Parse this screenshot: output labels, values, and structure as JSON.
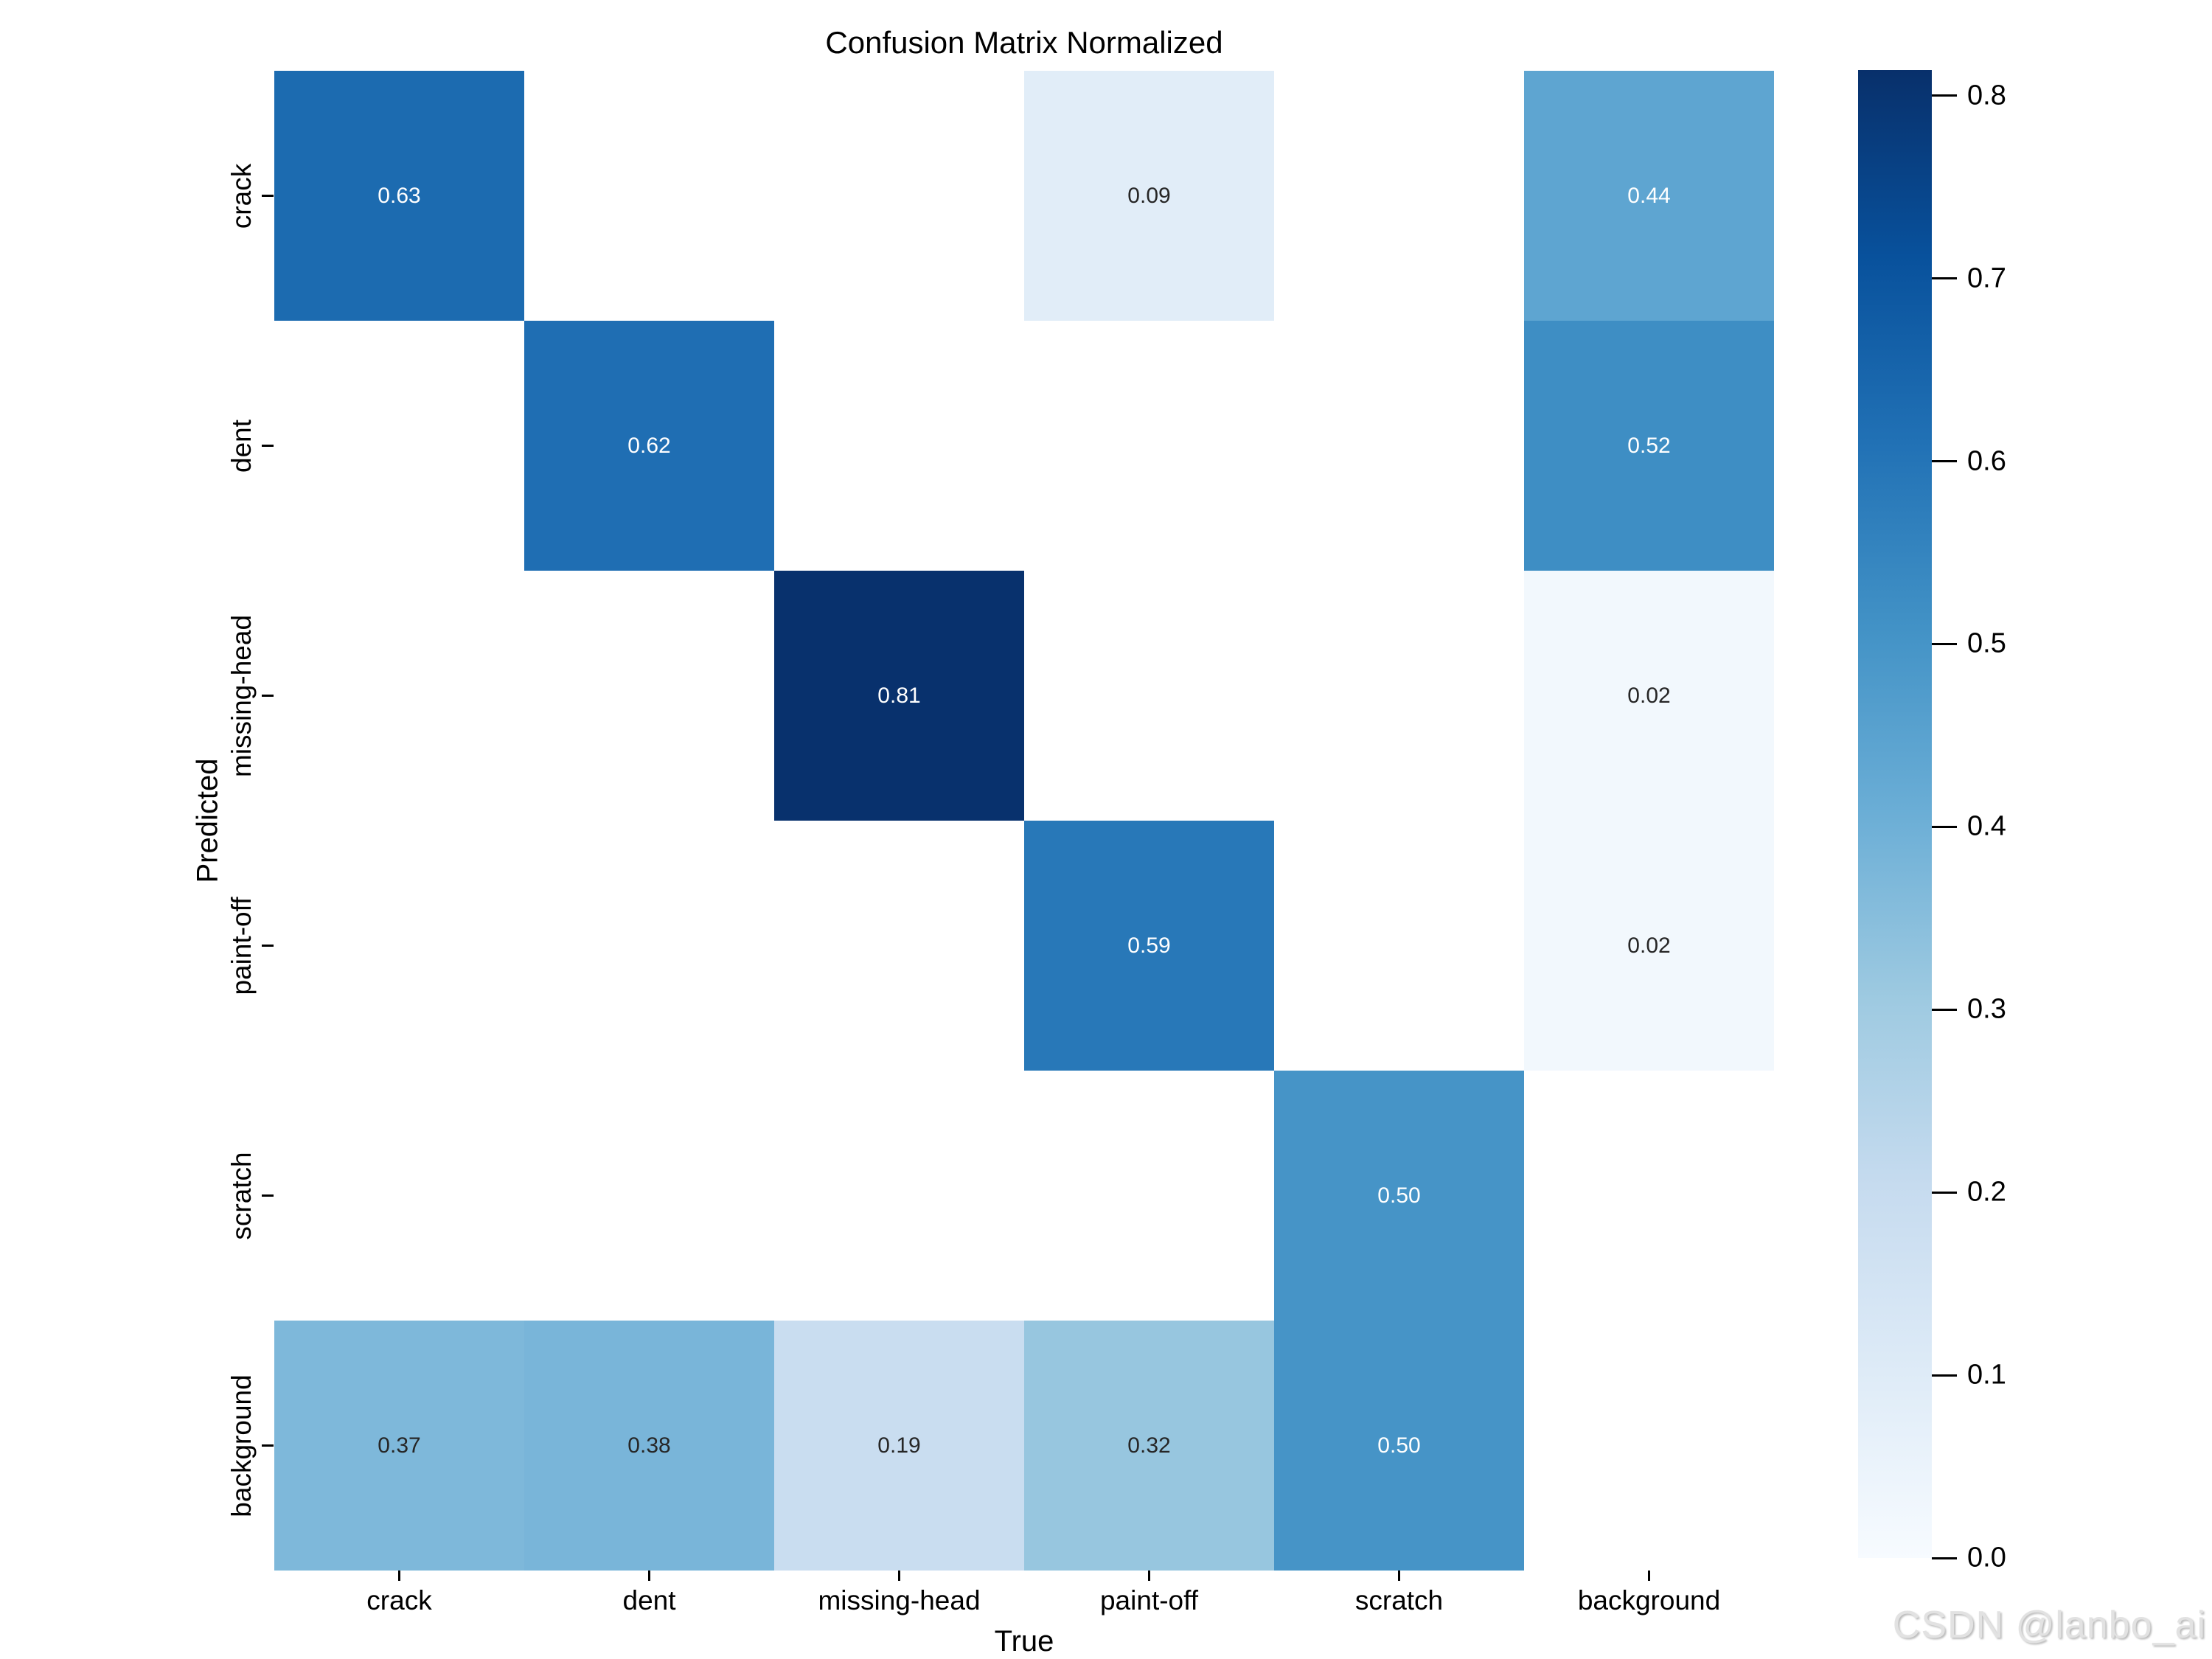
{
  "title": "Confusion Matrix Normalized",
  "watermark": "CSDN @lanbo_ai",
  "chart_data": {
    "type": "heatmap",
    "title": "Confusion Matrix Normalized",
    "xlabel": "True",
    "ylabel": "Predicted",
    "x_categories": [
      "crack",
      "dent",
      "missing-head",
      "paint-off",
      "scratch",
      "background"
    ],
    "y_categories": [
      "crack",
      "dent",
      "missing-head",
      "paint-off",
      "scratch",
      "background"
    ],
    "matrix": [
      [
        0.63,
        null,
        null,
        0.09,
        null,
        0.44
      ],
      [
        null,
        0.62,
        null,
        null,
        null,
        0.52
      ],
      [
        null,
        null,
        0.81,
        null,
        null,
        0.02
      ],
      [
        null,
        null,
        null,
        0.59,
        null,
        0.02
      ],
      [
        null,
        null,
        null,
        null,
        0.5,
        null
      ],
      [
        0.37,
        0.38,
        0.19,
        0.32,
        0.5,
        null
      ]
    ],
    "empty_cells_rendered_as": "white",
    "annotation_format": "2 decimal places",
    "annotation_dark_color": "#262626",
    "annotation_light_color": "#ffffff",
    "colormap": "Blues",
    "colormap_stops": [
      "#f7fbff",
      "#deebf7",
      "#c6dbef",
      "#9ecae1",
      "#6baed6",
      "#4292c6",
      "#2171b5",
      "#08519c",
      "#08306b"
    ],
    "vmin": 0.0,
    "vmax": 0.814,
    "colorbar_ticks": [
      "0.0",
      "0.1",
      "0.2",
      "0.3",
      "0.4",
      "0.5",
      "0.6",
      "0.7",
      "0.8"
    ],
    "legend_position": "right-colorbar",
    "grid": false
  }
}
